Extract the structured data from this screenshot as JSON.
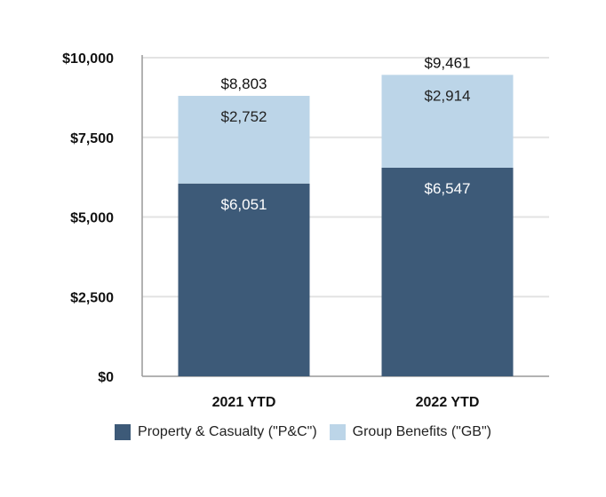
{
  "chart_data": {
    "type": "bar",
    "stacked": true,
    "categories": [
      "2021 YTD",
      "2022 YTD"
    ],
    "series": [
      {
        "name": "Property & Casualty (\"P&C\")",
        "values": [
          6051,
          6547
        ],
        "color": "#3d5a78",
        "labels": [
          "$6,051",
          "$6,547"
        ]
      },
      {
        "name": "Group Benefits (\"GB\")",
        "values": [
          2752,
          2914
        ],
        "color": "#bcd5e8",
        "labels": [
          "$2,752",
          "$2,914"
        ]
      }
    ],
    "totals": [
      8803,
      9461
    ],
    "total_labels": [
      "$8,803",
      "$9,461"
    ],
    "ylim": [
      0,
      10000
    ],
    "yticks": [
      0,
      2500,
      5000,
      7500,
      10000
    ],
    "ytick_labels": [
      "$0",
      "$2,500",
      "$5,000",
      "$7,500",
      "$10,000"
    ],
    "grid": true,
    "legend_position": "bottom"
  }
}
